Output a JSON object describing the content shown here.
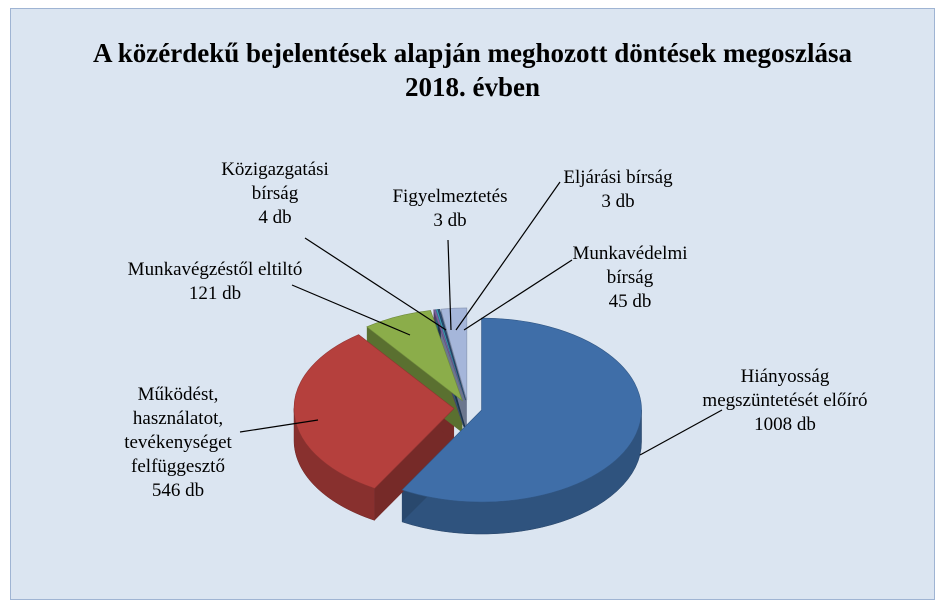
{
  "chart_data": {
    "type": "pie3d",
    "title": "A közérdekű bejelentések alapján meghozott döntések megoszlása 2018. évben",
    "categories": [
      "Hiányosság megszüntetését előíró",
      "Működést, használatot, tevékenységet felfüggesztő",
      "Munkavégzéstől eltiltó",
      "Közigazgatási bírság",
      "Figyelmeztetés",
      "Eljárási bírság",
      "Munkavédelmi bírság"
    ],
    "values": [
      1008,
      546,
      121,
      4,
      3,
      3,
      45
    ],
    "value_labels": [
      "1008 db",
      "546 db",
      "121 db",
      "4 db",
      "3 db",
      "3 db",
      "45 db"
    ],
    "colors": [
      "#3f6ea8",
      "#b5403d",
      "#8bad4a",
      "#7a5f9c",
      "#3d9fb8",
      "#2c4d75",
      "#a5b6da"
    ]
  }
}
